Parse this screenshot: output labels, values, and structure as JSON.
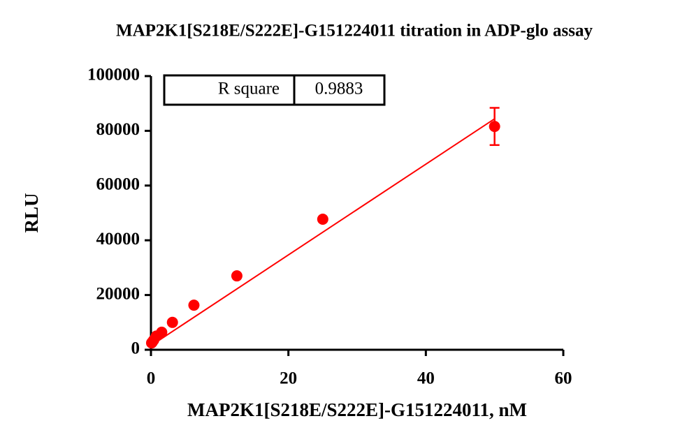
{
  "chart_data": {
    "type": "scatter",
    "title": "MAP2K1[S218E/S222E]-G151224011 titration in  ADP-glo assay",
    "x_label": "MAP2K1[S218E/S222E]-G151224011, nM",
    "y_label": "RLU",
    "x": [
      50,
      25,
      12.5,
      6.25,
      3.125,
      1.5625,
      0.78,
      0.39,
      0.195,
      0.098
    ],
    "values": [
      81600,
      47700,
      27000,
      16300,
      10000,
      6400,
      5000,
      3500,
      2800,
      2500
    ],
    "errors": [
      6800,
      null,
      null,
      null,
      null,
      null,
      null,
      null,
      null,
      null
    ],
    "color": "#ff0000",
    "fit_line": {
      "x": [
        0,
        50
      ],
      "values": [
        1500,
        84400
      ],
      "color": "#ff0000"
    },
    "annotation": {
      "label": "R square",
      "value": 0.9883
    },
    "xlim": [
      0,
      60
    ],
    "xticks": [
      0,
      20,
      40,
      60
    ],
    "ylim": [
      0,
      100000
    ],
    "yticks": [
      0,
      20000,
      40000,
      60000,
      80000,
      100000
    ],
    "grid": false
  }
}
